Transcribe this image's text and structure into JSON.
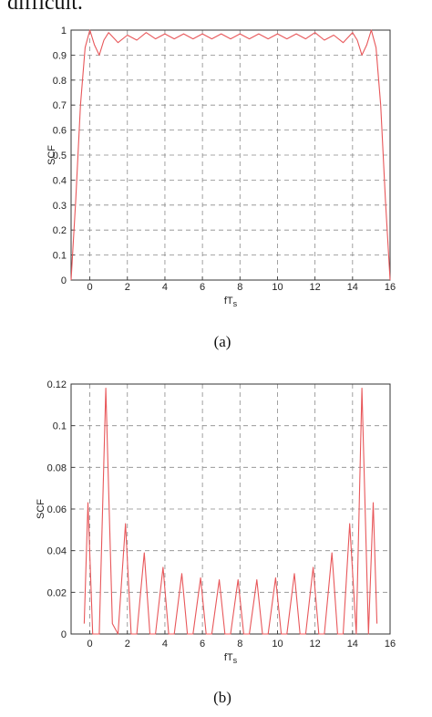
{
  "page": {
    "top_fragment": "difficult."
  },
  "chart_data": [
    {
      "type": "line",
      "caption": "(a)",
      "xlabel": "fT",
      "xlabel_sub": "s",
      "ylabel": "SCF",
      "xlim": [
        -1,
        16
      ],
      "ylim": [
        0,
        1
      ],
      "xticks": [
        0,
        2,
        4,
        6,
        8,
        10,
        12,
        14,
        16
      ],
      "yticks": [
        0,
        0.1,
        0.2,
        0.3,
        0.4,
        0.5,
        0.6,
        0.7,
        0.8,
        0.9,
        1
      ],
      "ytick_labels": [
        "0",
        "0.1",
        "0.2",
        "0.3",
        "0.4",
        "0.5",
        "0.6",
        "0.7",
        "0.8",
        "0.9",
        "1"
      ],
      "grid": true,
      "line_color": "#e8575a",
      "x": [
        -1,
        -0.75,
        -0.5,
        -0.25,
        0,
        0.25,
        0.5,
        0.75,
        1,
        1.5,
        2,
        2.5,
        3,
        3.5,
        4,
        4.5,
        5,
        5.5,
        6,
        6.5,
        7,
        7.5,
        8,
        8.5,
        9,
        9.5,
        10,
        10.5,
        11,
        11.5,
        12,
        12.5,
        13,
        13.5,
        14,
        14.25,
        14.5,
        14.75,
        15,
        15.25,
        15.5,
        15.75,
        16
      ],
      "y": [
        0,
        0.32,
        0.7,
        0.93,
        1,
        0.94,
        0.9,
        0.96,
        0.99,
        0.95,
        0.98,
        0.96,
        0.99,
        0.965,
        0.985,
        0.965,
        0.985,
        0.965,
        0.985,
        0.965,
        0.985,
        0.965,
        0.985,
        0.965,
        0.985,
        0.965,
        0.985,
        0.965,
        0.985,
        0.965,
        0.99,
        0.96,
        0.98,
        0.95,
        0.99,
        0.96,
        0.9,
        0.94,
        1,
        0.93,
        0.7,
        0.32,
        0
      ]
    },
    {
      "type": "line",
      "caption": "(b)",
      "xlabel": "fT",
      "xlabel_sub": "s",
      "ylabel": "SCF",
      "xlim": [
        -1,
        16
      ],
      "ylim": [
        0,
        0.12
      ],
      "xticks": [
        0,
        2,
        4,
        6,
        8,
        10,
        12,
        14,
        16
      ],
      "yticks": [
        0,
        0.02,
        0.04,
        0.06,
        0.08,
        0.1,
        0.12
      ],
      "ytick_labels": [
        "0",
        "0.02",
        "0.04",
        "0.06",
        "0.08",
        "0.1",
        "0.12"
      ],
      "grid": true,
      "line_color": "#e8575a",
      "x": [
        -0.3,
        -0.1,
        0.15,
        0.5,
        0.85,
        1.2,
        1.5,
        1.9,
        2.2,
        2.5,
        2.9,
        3.2,
        3.5,
        3.9,
        4.2,
        4.5,
        4.9,
        5.2,
        5.5,
        5.9,
        6.2,
        6.5,
        6.9,
        7.2,
        7.5,
        7.9,
        8.2,
        8.5,
        8.9,
        9.2,
        9.5,
        9.9,
        10.2,
        10.5,
        10.9,
        11.2,
        11.5,
        11.9,
        12.2,
        12.5,
        12.9,
        13.2,
        13.5,
        13.85,
        14.2,
        14.5,
        14.85,
        15.1,
        15.3
      ],
      "y": [
        0.005,
        0.063,
        0,
        0,
        0.118,
        0.005,
        0,
        0.053,
        0,
        0,
        0.039,
        0,
        0,
        0.032,
        0,
        0,
        0.029,
        0,
        0,
        0.027,
        0,
        0,
        0.026,
        0,
        0,
        0.026,
        0,
        0,
        0.026,
        0,
        0,
        0.027,
        0,
        0,
        0.029,
        0,
        0,
        0.032,
        0,
        0,
        0.039,
        0,
        0,
        0.053,
        0,
        0.118,
        0,
        0.063,
        0.005
      ]
    }
  ]
}
